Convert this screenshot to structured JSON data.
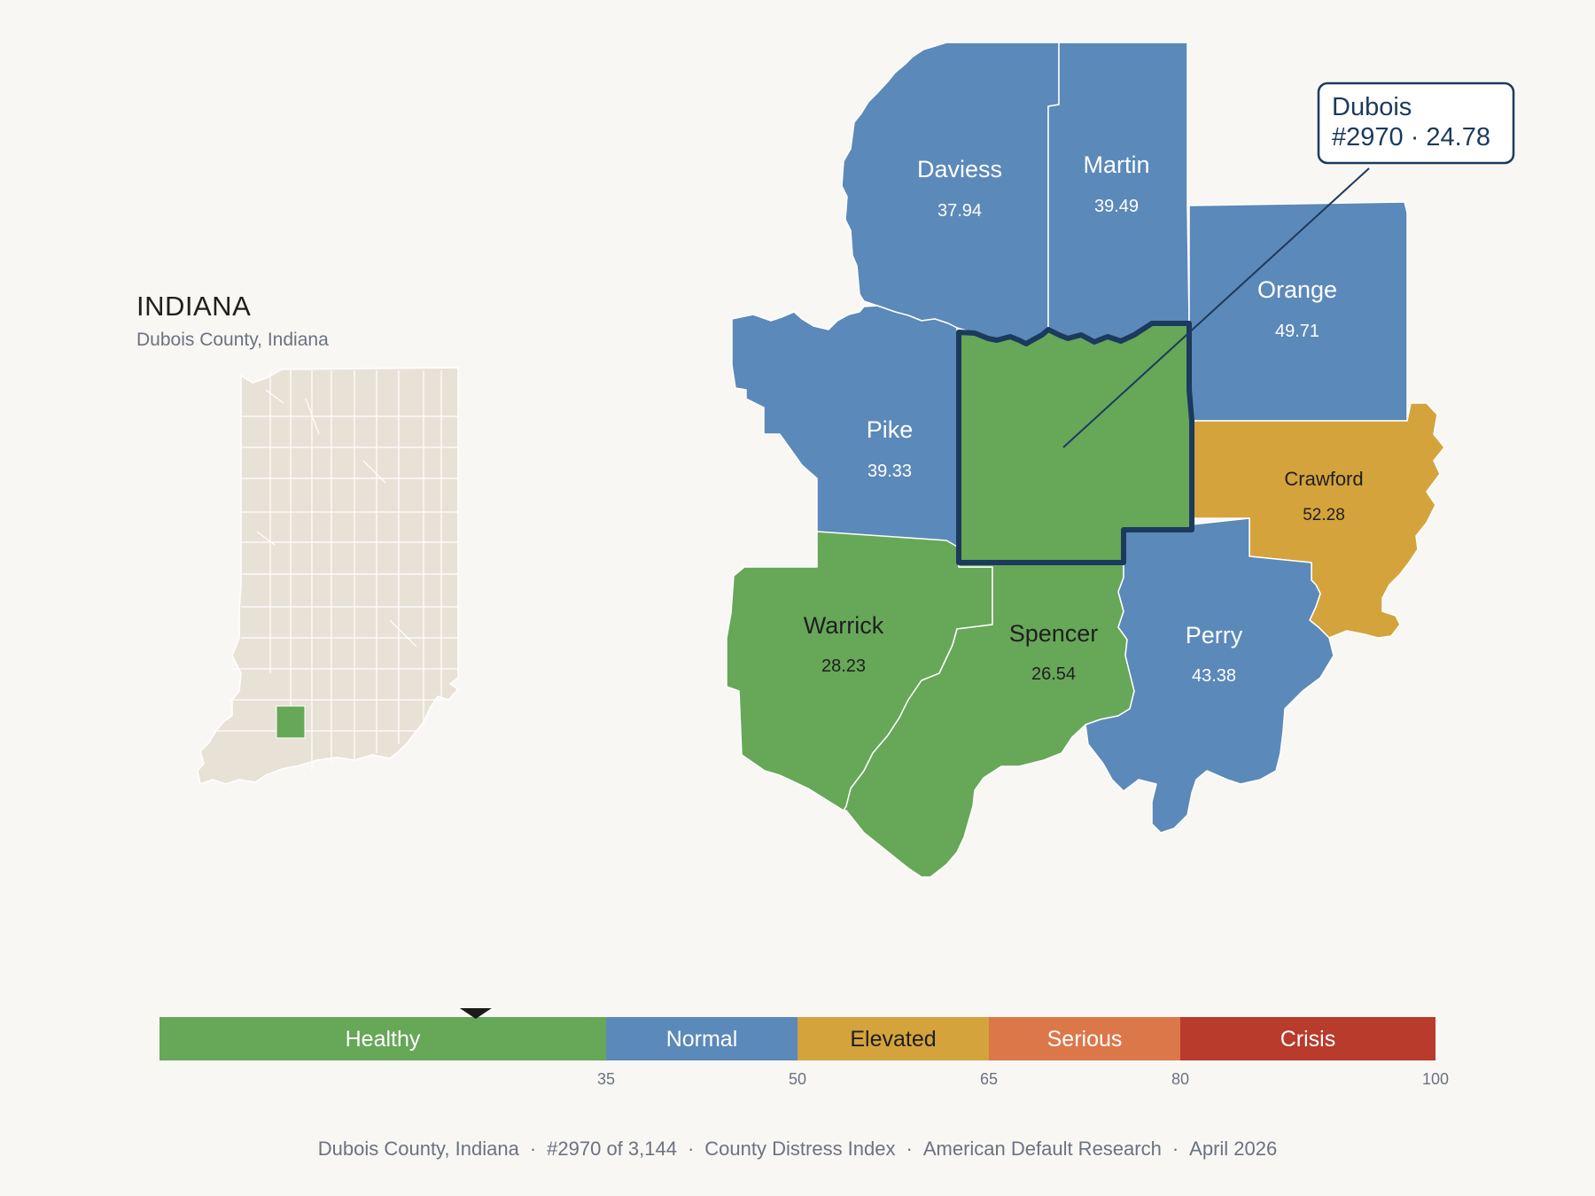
{
  "inset": {
    "title": "INDIANA",
    "subtitle": "Dubois County, Indiana"
  },
  "colors": {
    "healthy": "#66a758",
    "normal": "#5b89b9",
    "elevated": "#d4a33b",
    "serious": "#dc774a",
    "crisis": "#b83b2b",
    "background": "#f9f7f4",
    "inset_fill": "#e8e2d6",
    "highlight_border": "#1c3a5e"
  },
  "counties": [
    {
      "id": "daviess",
      "name": "Daviess",
      "value": "37.94",
      "category": "normal"
    },
    {
      "id": "martin",
      "name": "Martin",
      "value": "39.49",
      "category": "normal"
    },
    {
      "id": "orange",
      "name": "Orange",
      "value": "49.71",
      "category": "normal"
    },
    {
      "id": "pike",
      "name": "Pike",
      "value": "39.33",
      "category": "normal"
    },
    {
      "id": "crawford",
      "name": "Crawford",
      "value": "52.28",
      "category": "elevated"
    },
    {
      "id": "warrick",
      "name": "Warrick",
      "value": "28.23",
      "category": "healthy"
    },
    {
      "id": "spencer",
      "name": "Spencer",
      "value": "26.54",
      "category": "healthy"
    },
    {
      "id": "perry",
      "name": "Perry",
      "value": "43.38",
      "category": "normal"
    },
    {
      "id": "dubois",
      "name": "Dubois",
      "value": "24.78",
      "category": "healthy"
    }
  ],
  "callout": {
    "line1": "Dubois",
    "line2": "#2970 · 24.78"
  },
  "scale": {
    "min": 0,
    "max": 100,
    "marker_value": 24.78,
    "segments": [
      {
        "label": "Healthy",
        "from": 0,
        "to": 35,
        "color_key": "healthy"
      },
      {
        "label": "Normal",
        "from": 35,
        "to": 50,
        "color_key": "normal"
      },
      {
        "label": "Elevated",
        "from": 50,
        "to": 65,
        "color_key": "elevated"
      },
      {
        "label": "Serious",
        "from": 65,
        "to": 80,
        "color_key": "serious"
      },
      {
        "label": "Crisis",
        "from": 80,
        "to": 100,
        "color_key": "crisis"
      }
    ],
    "ticks": [
      "35",
      "50",
      "65",
      "80",
      "100"
    ]
  },
  "footer": {
    "county": "Dubois County, Indiana",
    "rank": "#2970 of 3,144",
    "index": "County Distress Index",
    "source": "American Default Research",
    "date": "April 2026"
  }
}
